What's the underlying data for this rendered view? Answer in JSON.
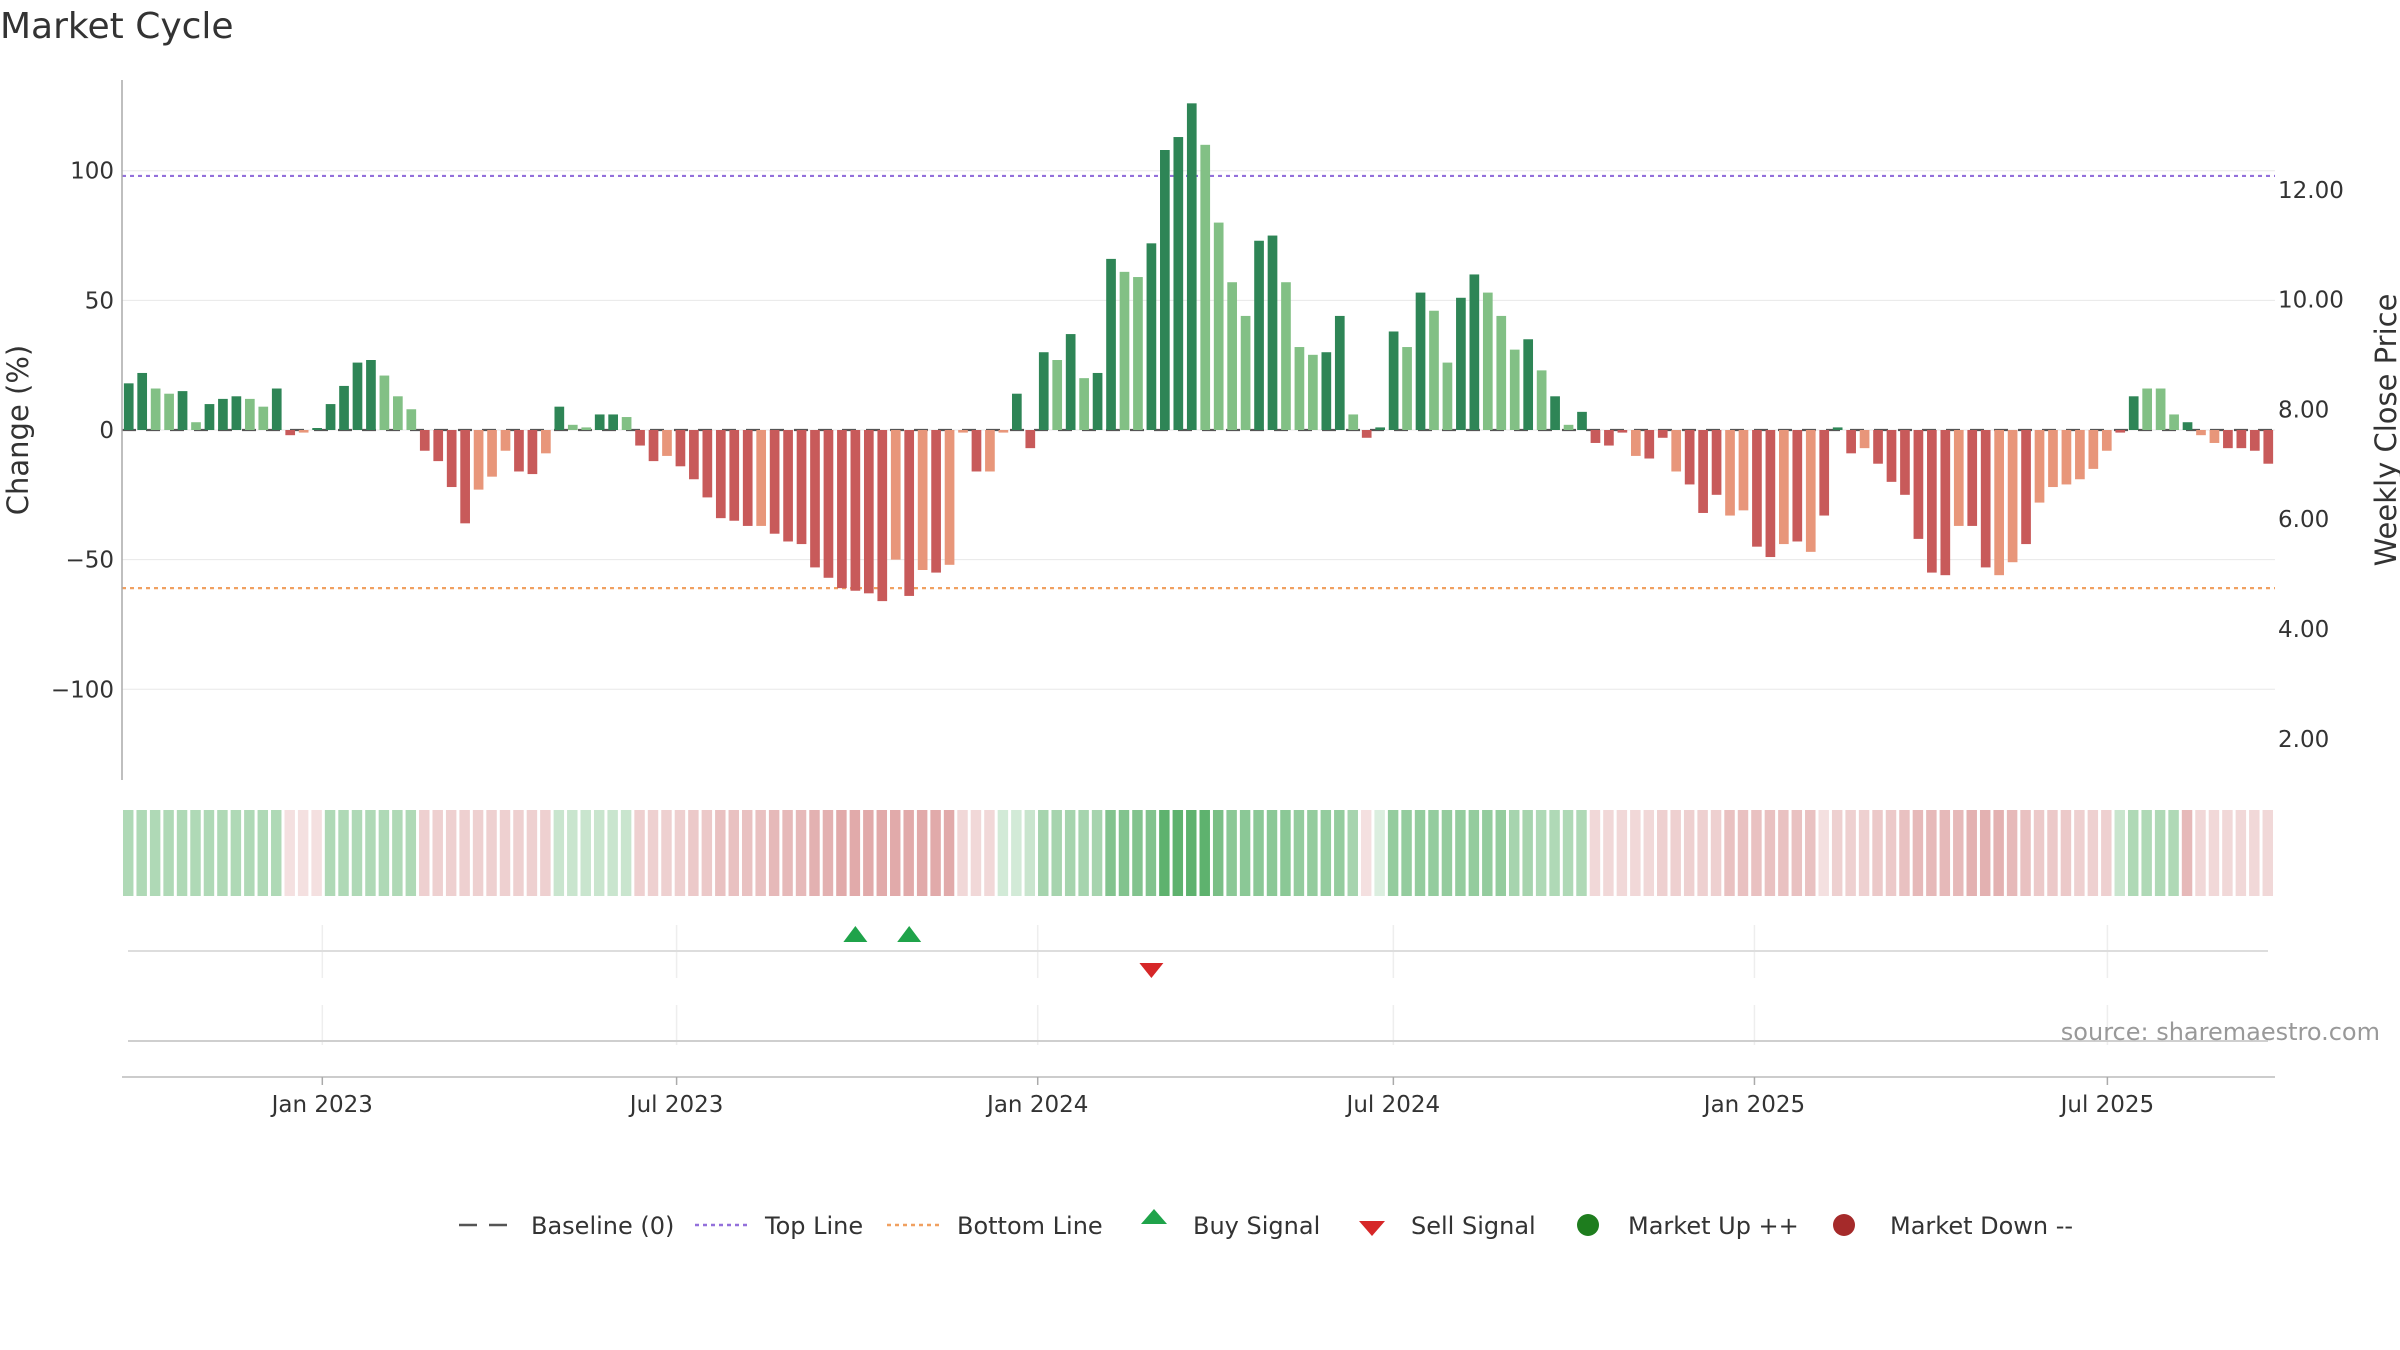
{
  "chart_data": {
    "type": "bar",
    "title": "Market Cycle",
    "ylabel": "Change (%)",
    "y2label": "Weekly Close Price",
    "ylim": [
      -135,
      135
    ],
    "y_ticks": [
      100,
      50,
      0,
      -50,
      -100
    ],
    "y_tick_labels": [
      "100",
      "50",
      "0",
      "−50",
      "−100"
    ],
    "y2lim": [
      1.25,
      14.0
    ],
    "y2_ticks": [
      12,
      10,
      8,
      6,
      4,
      2
    ],
    "y2_tick_labels": [
      "12.00",
      "10.00",
      "8.00",
      "6.00",
      "4.00",
      "2.00"
    ],
    "x_start_week": 0,
    "x_end_week": 158,
    "x_ticks": [
      {
        "label": "Jan 2023",
        "week": 14.7
      },
      {
        "label": "Jul 2023",
        "week": 40.7
      },
      {
        "label": "Jan 2024",
        "week": 67.2
      },
      {
        "label": "Jul 2024",
        "week": 93.3
      },
      {
        "label": "Jan 2025",
        "week": 119.8
      },
      {
        "label": "Jul 2025",
        "week": 145.7
      }
    ],
    "reference_lines": [
      {
        "name": "Baseline (0)",
        "y": 0,
        "color": "#555555",
        "style": "dash"
      },
      {
        "name": "Top Line",
        "y": 98,
        "color": "#9370db",
        "style": "dot"
      },
      {
        "name": "Bottom Line",
        "y": -61,
        "color": "#f0a060",
        "style": "dot"
      }
    ],
    "values": [
      18,
      22,
      16,
      14,
      15,
      3,
      10,
      12,
      13,
      12,
      9,
      16,
      -2,
      -1,
      0,
      10,
      17,
      26,
      27,
      21,
      13,
      8,
      -8,
      -12,
      -22,
      -36,
      -23,
      -18,
      -8,
      -16,
      -17,
      -9,
      9,
      2,
      1,
      6,
      6,
      5,
      -6,
      -12,
      -10,
      -14,
      -19,
      -26,
      -34,
      -35,
      -37,
      -37,
      -40,
      -43,
      -44,
      -53,
      -57,
      -61,
      -62,
      -63,
      -66,
      -50,
      -64,
      -54,
      -55,
      -52,
      -1,
      -16,
      -16,
      -1,
      14,
      -7,
      30,
      27,
      37,
      20,
      22,
      66,
      61,
      59,
      72,
      108,
      113,
      126,
      110,
      80,
      57,
      44,
      73,
      75,
      57,
      32,
      29,
      30,
      44,
      6,
      -3,
      1,
      38,
      32,
      53,
      46,
      26,
      51,
      60,
      53,
      44,
      31,
      35,
      23,
      13,
      2,
      7,
      -5,
      -6,
      -1,
      -10,
      -11,
      -3,
      -16,
      -21,
      -32,
      -25,
      -33,
      -31,
      -45,
      -49,
      -44,
      -43,
      -47,
      -33,
      1,
      -9,
      -7,
      -13,
      -20,
      -25,
      -42,
      -55,
      -56,
      -37,
      -37,
      -53,
      -56,
      -51,
      -44,
      -28,
      -22,
      -21,
      -19,
      -15,
      -8,
      -1,
      13,
      16,
      16,
      6,
      3,
      -2,
      -5,
      -7,
      -7,
      -8,
      -13
    ],
    "bar_shades": [
      "dark",
      "dark",
      "light",
      "light",
      "dark",
      "light",
      "dark",
      "dark",
      "dark",
      "light",
      "light",
      "dark",
      "dark",
      "light",
      "dark",
      "dark",
      "dark",
      "dark",
      "dark",
      "light",
      "light",
      "light",
      "dark",
      "dark",
      "dark",
      "dark",
      "light",
      "light",
      "light",
      "dark",
      "dark",
      "light",
      "dark",
      "light",
      "light",
      "dark",
      "dark",
      "light",
      "dark",
      "dark",
      "light",
      "dark",
      "dark",
      "dark",
      "dark",
      "dark",
      "dark",
      "light",
      "dark",
      "dark",
      "dark",
      "dark",
      "dark",
      "dark",
      "dark",
      "dark",
      "dark",
      "light",
      "dark",
      "light",
      "dark",
      "light",
      "light",
      "dark",
      "light",
      "light",
      "dark",
      "dark",
      "dark",
      "light",
      "dark",
      "light",
      "dark",
      "dark",
      "light",
      "light",
      "dark",
      "dark",
      "dark",
      "dark",
      "light",
      "light",
      "light",
      "light",
      "dark",
      "dark",
      "light",
      "light",
      "light",
      "dark",
      "dark",
      "light",
      "dark",
      "dark",
      "dark",
      "light",
      "dark",
      "light",
      "light",
      "dark",
      "dark",
      "light",
      "light",
      "light",
      "dark",
      "light",
      "dark",
      "light",
      "dark",
      "dark",
      "dark",
      "dark",
      "light",
      "dark",
      "dark",
      "light",
      "dark",
      "dark",
      "dark",
      "light",
      "light",
      "dark",
      "dark",
      "light",
      "dark",
      "light",
      "dark",
      "dark",
      "dark",
      "light",
      "dark",
      "dark",
      "dark",
      "dark",
      "dark",
      "dark",
      "light",
      "dark",
      "dark",
      "light",
      "light",
      "dark",
      "light",
      "light",
      "light",
      "light",
      "light",
      "light",
      "dark",
      "dark",
      "light",
      "light",
      "light",
      "dark",
      "light",
      "light",
      "dark",
      "dark"
    ],
    "colors": {
      "up_dark": "#2e8556",
      "up_light": "#82c085",
      "down_dark": "#c85a5a",
      "down_light": "#e8967a"
    },
    "strip": {
      "cell_alphas": [
        0.45,
        0.45,
        0.45,
        0.45,
        0.45,
        0.45,
        0.45,
        0.45,
        0.45,
        0.45,
        0.45,
        0.45,
        0.2,
        0.2,
        0.2,
        0.45,
        0.45,
        0.45,
        0.45,
        0.45,
        0.45,
        0.45,
        0.3,
        0.3,
        0.3,
        0.3,
        0.3,
        0.3,
        0.3,
        0.3,
        0.3,
        0.3,
        0.3,
        0.3,
        0.3,
        0.3,
        0.3,
        0.3,
        0.3,
        0.3,
        0.3,
        0.3,
        0.35,
        0.35,
        0.4,
        0.4,
        0.4,
        0.4,
        0.45,
        0.45,
        0.45,
        0.5,
        0.5,
        0.55,
        0.55,
        0.55,
        0.55,
        0.55,
        0.55,
        0.55,
        0.55,
        0.55,
        0.25,
        0.25,
        0.25,
        0.25,
        0.25,
        0.3,
        0.5,
        0.5,
        0.5,
        0.5,
        0.5,
        0.7,
        0.7,
        0.7,
        0.7,
        0.9,
        0.9,
        0.9,
        0.9,
        0.75,
        0.65,
        0.65,
        0.65,
        0.65,
        0.65,
        0.6,
        0.6,
        0.6,
        0.6,
        0.5,
        0.2,
        0.2,
        0.6,
        0.6,
        0.6,
        0.6,
        0.6,
        0.6,
        0.6,
        0.6,
        0.6,
        0.5,
        0.5,
        0.45,
        0.45,
        0.45,
        0.45,
        0.25,
        0.25,
        0.25,
        0.25,
        0.25,
        0.3,
        0.3,
        0.3,
        0.3,
        0.3,
        0.4,
        0.4,
        0.4,
        0.4,
        0.4,
        0.4,
        0.4,
        0.2,
        0.3,
        0.3,
        0.3,
        0.35,
        0.35,
        0.4,
        0.45,
        0.45,
        0.45,
        0.45,
        0.5,
        0.5,
        0.5,
        0.45,
        0.4,
        0.35,
        0.35,
        0.35,
        0.3,
        0.3,
        0.3,
        0.3,
        0.45,
        0.45,
        0.45,
        0.45,
        0.45,
        0.25,
        0.25,
        0.25,
        0.25,
        0.25,
        0.25
      ],
      "cell_sides": [
        "up",
        "up",
        "up",
        "up",
        "up",
        "up",
        "up",
        "up",
        "up",
        "up",
        "up",
        "up",
        "down",
        "down",
        "down",
        "up",
        "up",
        "up",
        "up",
        "up",
        "up",
        "up",
        "down",
        "down",
        "down",
        "down",
        "down",
        "down",
        "down",
        "down",
        "down",
        "down",
        "up",
        "up",
        "up",
        "up",
        "up",
        "up",
        "down",
        "down",
        "down",
        "down",
        "down",
        "down",
        "down",
        "down",
        "down",
        "down",
        "down",
        "down",
        "down",
        "down",
        "down",
        "down",
        "down",
        "down",
        "down",
        "down",
        "down",
        "down",
        "down",
        "down",
        "down",
        "down",
        "down",
        "up",
        "up",
        "up",
        "up",
        "up",
        "up",
        "up",
        "up",
        "up",
        "up",
        "up",
        "up",
        "up",
        "up",
        "up",
        "up",
        "up",
        "up",
        "up",
        "up",
        "up",
        "up",
        "up",
        "up",
        "up",
        "up",
        "up",
        "down",
        "up",
        "up",
        "up",
        "up",
        "up",
        "up",
        "up",
        "up",
        "up",
        "up",
        "up",
        "up",
        "up",
        "up",
        "up",
        "up",
        "down",
        "down",
        "down",
        "down",
        "down",
        "down",
        "down",
        "down",
        "down",
        "down",
        "down",
        "down",
        "down",
        "down",
        "down",
        "down",
        "down",
        "down",
        "down",
        "down",
        "down",
        "down",
        "down",
        "down",
        "down",
        "down",
        "down",
        "down",
        "down",
        "down",
        "down",
        "down",
        "down",
        "down",
        "down",
        "down",
        "down",
        "down",
        "down",
        "up",
        "up",
        "up",
        "up",
        "up",
        "down",
        "down",
        "down",
        "down",
        "down",
        "down",
        "down"
      ],
      "up_color": "#4daa5e",
      "down_color": "#c86464"
    },
    "signals": {
      "buy_weeks": [
        54.5,
        58.5
      ],
      "sell_weeks": [
        76.5
      ],
      "buy_color": "#1fa34a",
      "sell_color": "#d62728"
    },
    "legend_position": "bottom-center",
    "legend": [
      {
        "label": "Baseline (0)",
        "symbol": "dash",
        "color": "#555555"
      },
      {
        "label": "Top Line",
        "symbol": "dotline",
        "color": "#9370db"
      },
      {
        "label": "Bottom Line",
        "symbol": "dotline",
        "color": "#f0a060"
      },
      {
        "label": "Buy Signal",
        "symbol": "triangle-up",
        "color": "#1fa34a"
      },
      {
        "label": "Sell Signal",
        "symbol": "triangle-down",
        "color": "#d62728"
      },
      {
        "label": "Market Up ++",
        "symbol": "circle",
        "color": "#1e7d1e"
      },
      {
        "label": "Market Down --",
        "symbol": "circle",
        "color": "#a52a2a"
      }
    ],
    "source": "source: sharemaestro.com",
    "grid": true
  }
}
